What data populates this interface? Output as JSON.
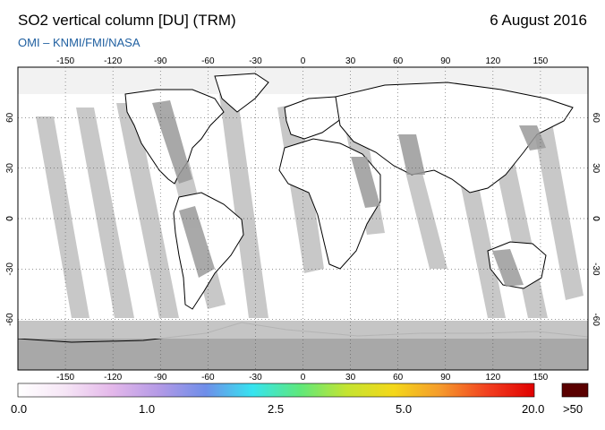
{
  "header": {
    "title": "SO2 vertical column [DU] (TRM)",
    "date": "6 August 2016",
    "credit": "OMI  –  KNMI/FMI/NASA"
  },
  "map": {
    "lon_ticks": [
      "-150",
      "-120",
      "-90",
      "-60",
      "-30",
      "0",
      "30",
      "60",
      "90",
      "120",
      "150"
    ],
    "lat_ticks": [
      "60",
      "30",
      "0",
      "-30",
      "-60"
    ],
    "colors": {
      "ocean": "#ffffff",
      "swath_gap": "#c8c8c8",
      "land_gap": "#9a9a9a",
      "antarctica": "#a8a8a8",
      "coast": "#000000"
    }
  },
  "colorbar": {
    "labels": [
      "0.0",
      "1.0",
      "2.5",
      "5.0",
      "20.0",
      ">50"
    ],
    "gradient_stops": [
      "#ffffff",
      "#f6e6f6",
      "#e4b8ea",
      "#b49ae6",
      "#6f8ee9",
      "#36e4f0",
      "#5ee87c",
      "#c4e431",
      "#f4d81a",
      "#f59a2c",
      "#f24020",
      "#e00000"
    ],
    "overflow_color": "#5a0000"
  }
}
